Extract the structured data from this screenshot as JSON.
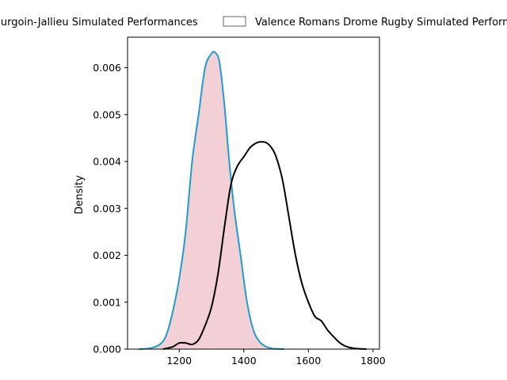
{
  "chart_data": {
    "type": "area",
    "title": "",
    "xlabel": "",
    "ylabel": "Density",
    "xlim": [
      1040,
      1820
    ],
    "ylim": [
      0,
      0.00665
    ],
    "xticks": [
      1200,
      1400,
      1600,
      1800
    ],
    "yticks": [
      0.0,
      0.001,
      0.002,
      0.003,
      0.004,
      0.005,
      0.006
    ],
    "xtick_labels": [
      "1200",
      "1400",
      "1600",
      "1800"
    ],
    "ytick_labels": [
      "0.000",
      "0.001",
      "0.002",
      "0.003",
      "0.004",
      "0.005",
      "0.006"
    ],
    "grid": false,
    "legend_position": "top (clipped)",
    "legend": [
      "Bourgoin-Jallieu Simulated Performances",
      "Valence Romans Drome Rugby Simulated Performances"
    ],
    "series": [
      {
        "name": "Bourgoin-Jallieu Simulated Performances",
        "fill_color": "#f2d0d5",
        "line_color": "#1f9ec9",
        "filled": true,
        "points": [
          [
            1075,
            0.0
          ],
          [
            1110,
            2e-05
          ],
          [
            1140,
            0.0001
          ],
          [
            1160,
            0.0003
          ],
          [
            1180,
            0.0008
          ],
          [
            1200,
            0.0015
          ],
          [
            1220,
            0.0025
          ],
          [
            1240,
            0.004
          ],
          [
            1260,
            0.005
          ],
          [
            1280,
            0.006
          ],
          [
            1300,
            0.0063
          ],
          [
            1312,
            0.00632
          ],
          [
            1325,
            0.0061
          ],
          [
            1340,
            0.0052
          ],
          [
            1355,
            0.004
          ],
          [
            1370,
            0.003
          ],
          [
            1390,
            0.002
          ],
          [
            1410,
            0.001
          ],
          [
            1430,
            0.0004
          ],
          [
            1450,
            0.00015
          ],
          [
            1470,
            5e-05
          ],
          [
            1490,
            1e-05
          ],
          [
            1525,
            0.0
          ]
        ]
      },
      {
        "name": "Valence Romans Drome Rugby Simulated Performances",
        "fill_color": "none",
        "line_color": "#000000",
        "filled": false,
        "points": [
          [
            1150,
            0.0
          ],
          [
            1180,
            5e-05
          ],
          [
            1200,
            0.00013
          ],
          [
            1220,
            0.00013
          ],
          [
            1240,
            0.0001
          ],
          [
            1260,
            0.0002
          ],
          [
            1280,
            0.0005
          ],
          [
            1300,
            0.0009
          ],
          [
            1320,
            0.0016
          ],
          [
            1340,
            0.0026
          ],
          [
            1360,
            0.0035
          ],
          [
            1380,
            0.0039
          ],
          [
            1400,
            0.0041
          ],
          [
            1420,
            0.0043
          ],
          [
            1440,
            0.0044
          ],
          [
            1455,
            0.00442
          ],
          [
            1470,
            0.0044
          ],
          [
            1485,
            0.0043
          ],
          [
            1500,
            0.0041
          ],
          [
            1520,
            0.0036
          ],
          [
            1540,
            0.0028
          ],
          [
            1560,
            0.002
          ],
          [
            1580,
            0.0014
          ],
          [
            1600,
            0.001
          ],
          [
            1620,
            0.0007
          ],
          [
            1640,
            0.0006
          ],
          [
            1660,
            0.0004
          ],
          [
            1680,
            0.00025
          ],
          [
            1700,
            0.00012
          ],
          [
            1720,
            5e-05
          ],
          [
            1750,
            1e-05
          ],
          [
            1780,
            0.0
          ]
        ]
      }
    ]
  }
}
